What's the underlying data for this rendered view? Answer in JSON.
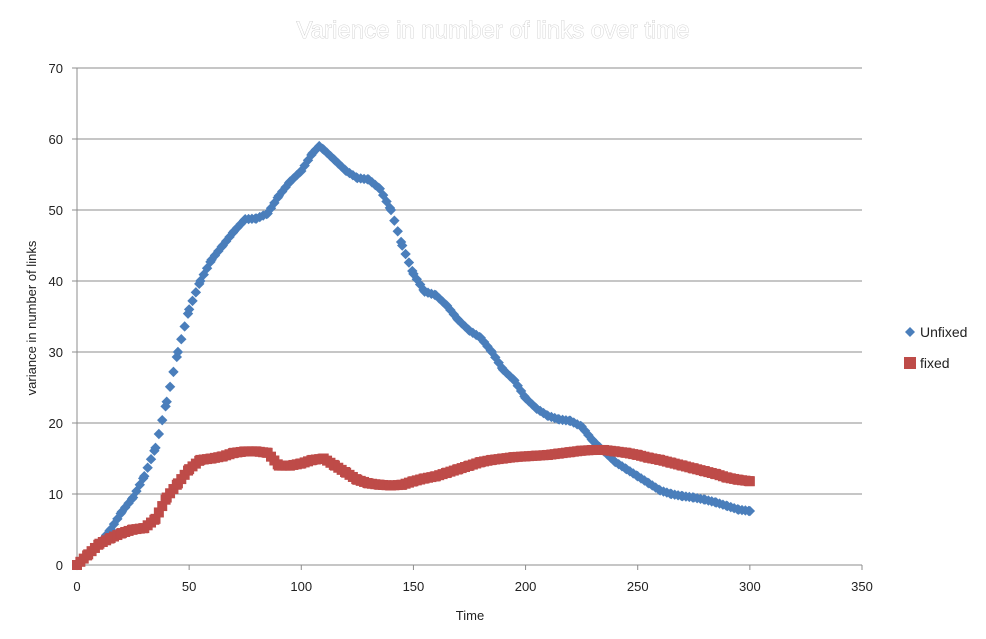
{
  "chart_data": {
    "type": "scatter",
    "title": "Varience in number of links over time",
    "xlabel": "Time",
    "ylabel": "variance in number of links",
    "xlim": [
      0,
      350
    ],
    "ylim": [
      0,
      70
    ],
    "x_ticks": [
      0,
      50,
      100,
      150,
      200,
      250,
      300,
      350
    ],
    "y_ticks": [
      0,
      10,
      20,
      30,
      40,
      50,
      60,
      70
    ],
    "grid": "horizontal",
    "legend_position": "right",
    "series": [
      {
        "name": "Unfixed",
        "marker": "diamond",
        "color": "#4a7ebb",
        "points": [
          [
            0,
            0
          ],
          [
            5,
            1.5
          ],
          [
            10,
            3
          ],
          [
            15,
            5
          ],
          [
            20,
            7.5
          ],
          [
            25,
            9.5
          ],
          [
            30,
            12.5
          ],
          [
            35,
            16.5
          ],
          [
            40,
            23
          ],
          [
            45,
            30
          ],
          [
            50,
            36
          ],
          [
            55,
            40
          ],
          [
            60,
            43
          ],
          [
            65,
            45
          ],
          [
            70,
            47
          ],
          [
            75,
            48.7
          ],
          [
            80,
            48.8
          ],
          [
            85,
            49.5
          ],
          [
            90,
            52
          ],
          [
            95,
            54
          ],
          [
            100,
            55.5
          ],
          [
            105,
            58
          ],
          [
            108,
            59
          ],
          [
            110,
            58.5
          ],
          [
            115,
            57
          ],
          [
            120,
            55.5
          ],
          [
            125,
            54.5
          ],
          [
            130,
            54.3
          ],
          [
            135,
            53
          ],
          [
            140,
            50
          ],
          [
            145,
            45
          ],
          [
            150,
            41
          ],
          [
            155,
            38.5
          ],
          [
            160,
            38
          ],
          [
            165,
            36.5
          ],
          [
            170,
            34.5
          ],
          [
            175,
            33
          ],
          [
            180,
            32
          ],
          [
            185,
            30
          ],
          [
            190,
            27.5
          ],
          [
            195,
            26
          ],
          [
            200,
            23.5
          ],
          [
            205,
            22
          ],
          [
            210,
            21
          ],
          [
            215,
            20.5
          ],
          [
            220,
            20.3
          ],
          [
            225,
            19.5
          ],
          [
            230,
            17.5
          ],
          [
            235,
            16
          ],
          [
            240,
            14.5
          ],
          [
            245,
            13.5
          ],
          [
            250,
            12.5
          ],
          [
            255,
            11.5
          ],
          [
            260,
            10.5
          ],
          [
            265,
            10
          ],
          [
            270,
            9.7
          ],
          [
            275,
            9.5
          ],
          [
            280,
            9.2
          ],
          [
            285,
            8.8
          ],
          [
            290,
            8.3
          ],
          [
            295,
            7.8
          ],
          [
            300,
            7.6
          ]
        ]
      },
      {
        "name": "fixed",
        "marker": "square",
        "color": "#be4b48",
        "points": [
          [
            0,
            0
          ],
          [
            5,
            1.5
          ],
          [
            10,
            3
          ],
          [
            15,
            3.8
          ],
          [
            20,
            4.5
          ],
          [
            25,
            5
          ],
          [
            30,
            5.2
          ],
          [
            35,
            6.5
          ],
          [
            40,
            9.5
          ],
          [
            45,
            11.5
          ],
          [
            50,
            13.5
          ],
          [
            55,
            14.8
          ],
          [
            60,
            15
          ],
          [
            65,
            15.3
          ],
          [
            70,
            15.8
          ],
          [
            75,
            16
          ],
          [
            80,
            16
          ],
          [
            85,
            15.8
          ],
          [
            90,
            14
          ],
          [
            95,
            14
          ],
          [
            100,
            14.3
          ],
          [
            105,
            14.8
          ],
          [
            110,
            15
          ],
          [
            115,
            14
          ],
          [
            120,
            13
          ],
          [
            125,
            12
          ],
          [
            130,
            11.5
          ],
          [
            135,
            11.3
          ],
          [
            140,
            11.2
          ],
          [
            145,
            11.3
          ],
          [
            150,
            11.8
          ],
          [
            155,
            12.2
          ],
          [
            160,
            12.5
          ],
          [
            165,
            13
          ],
          [
            170,
            13.5
          ],
          [
            175,
            14
          ],
          [
            180,
            14.5
          ],
          [
            185,
            14.8
          ],
          [
            190,
            15
          ],
          [
            195,
            15.2
          ],
          [
            200,
            15.3
          ],
          [
            205,
            15.4
          ],
          [
            210,
            15.5
          ],
          [
            215,
            15.7
          ],
          [
            220,
            15.9
          ],
          [
            225,
            16.1
          ],
          [
            230,
            16.2
          ],
          [
            235,
            16.2
          ],
          [
            240,
            16
          ],
          [
            245,
            15.8
          ],
          [
            250,
            15.5
          ],
          [
            255,
            15.1
          ],
          [
            260,
            14.8
          ],
          [
            265,
            14.4
          ],
          [
            270,
            14
          ],
          [
            275,
            13.6
          ],
          [
            280,
            13.2
          ],
          [
            285,
            12.8
          ],
          [
            290,
            12.3
          ],
          [
            295,
            12
          ],
          [
            300,
            11.8
          ]
        ]
      }
    ]
  }
}
